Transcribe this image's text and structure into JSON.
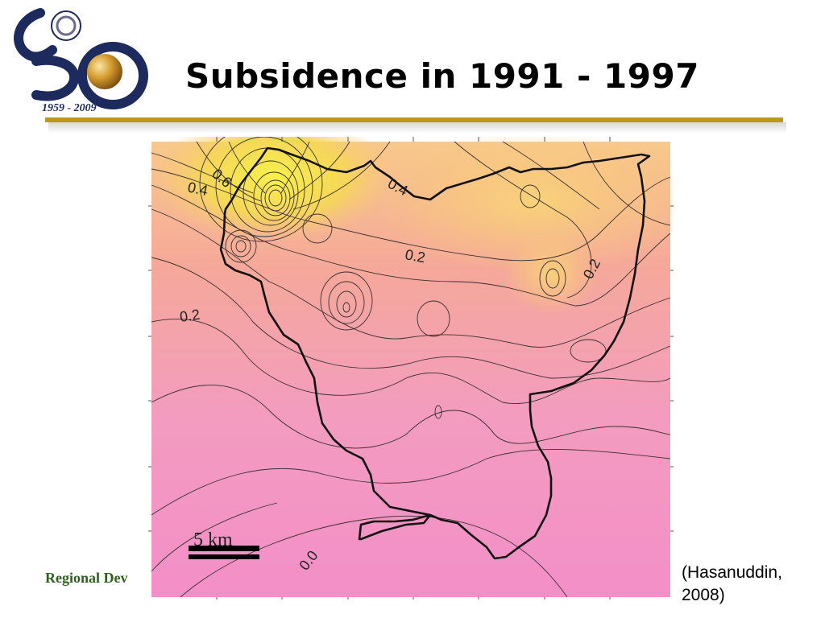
{
  "slide": {
    "title": "Subsidence in 1991 - 1997",
    "footer": "Regional Dev",
    "citation": "(Hasanuddin, 2008)"
  },
  "logo": {
    "years": "1959 - 2009",
    "icon": "anniversary-50-logo-icon",
    "accent_color": "#b8901e",
    "navy_color": "#1c2a5e"
  },
  "map": {
    "scale_label": "5 km",
    "contour_labels": [
      "0.4",
      "0.6",
      "0.4",
      "0.2",
      "0.2",
      "0.2",
      "0.0"
    ],
    "colors": {
      "high": "#f4e24a",
      "mid": "#f7a97c",
      "low": "#f48fc5"
    }
  }
}
